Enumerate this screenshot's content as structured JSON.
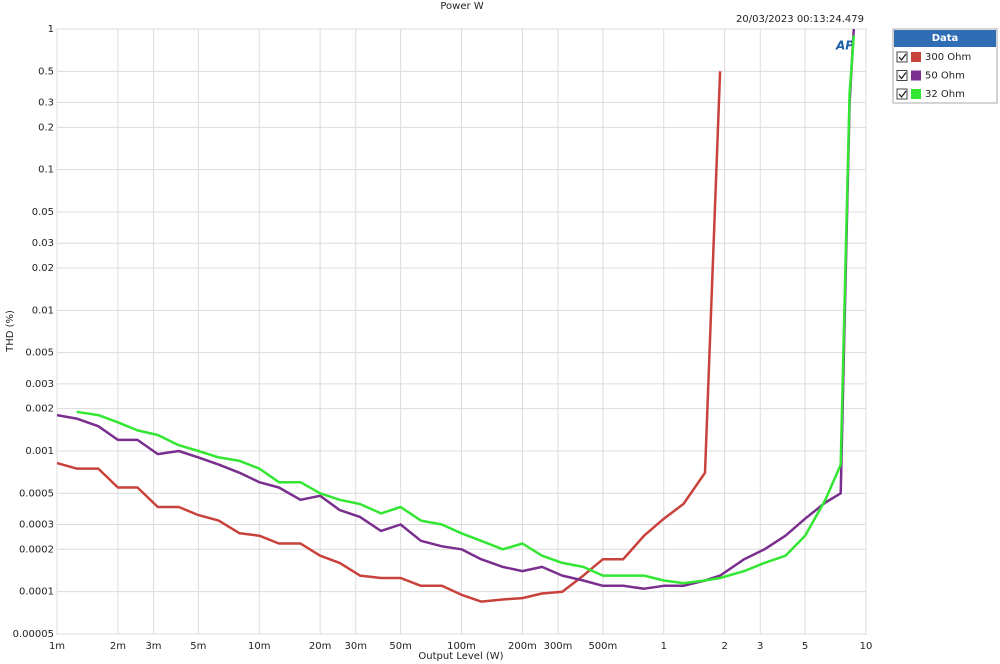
{
  "chart_data": {
    "type": "line",
    "title": "Power W",
    "timestamp": "20/03/2023 00:13:24.479",
    "logo": "AP",
    "xlabel": "Output Level (W)",
    "ylabel": "THD (%)",
    "legend_title": "Data",
    "legend": "outside-right",
    "xscale": "log",
    "yscale": "log",
    "grid": true,
    "xlim": [
      0.001,
      10
    ],
    "ylim": [
      5e-05,
      1
    ],
    "xticks": [
      {
        "value": 0.001,
        "label": "1m"
      },
      {
        "value": 0.002,
        "label": "2m"
      },
      {
        "value": 0.003,
        "label": "3m"
      },
      {
        "value": 0.005,
        "label": "5m"
      },
      {
        "value": 0.01,
        "label": "10m"
      },
      {
        "value": 0.02,
        "label": "20m"
      },
      {
        "value": 0.03,
        "label": "30m"
      },
      {
        "value": 0.05,
        "label": "50m"
      },
      {
        "value": 0.1,
        "label": "100m"
      },
      {
        "value": 0.2,
        "label": "200m"
      },
      {
        "value": 0.3,
        "label": "300m"
      },
      {
        "value": 0.5,
        "label": "500m"
      },
      1,
      2,
      3,
      5,
      10
    ],
    "yticks": [
      1,
      0.5,
      0.3,
      0.2,
      0.1,
      0.05,
      0.03,
      0.02,
      0.01,
      0.005,
      0.003,
      0.002,
      0.001,
      0.0005,
      0.0003,
      0.0002,
      0.0001,
      5e-05
    ],
    "x": [
      0.001,
      0.00125,
      0.0016,
      0.002,
      0.0025,
      0.00315,
      0.004,
      0.005,
      0.0063,
      0.008,
      0.01,
      0.0125,
      0.016,
      0.02,
      0.025,
      0.0315,
      0.04,
      0.05,
      0.063,
      0.08,
      0.1,
      0.125,
      0.16,
      0.2,
      0.25,
      0.315,
      0.4,
      0.5,
      0.63,
      0.8,
      1,
      1.25,
      1.6,
      1.9,
      2.5,
      3.15,
      4,
      5,
      6.3,
      7.5,
      8.3,
      8.7
    ],
    "series": [
      {
        "name": "300 Ohm",
        "color": "#c8413b",
        "values": [
          0.00082,
          0.00075,
          0.00075,
          0.00055,
          0.00055,
          0.0004,
          0.0004,
          0.00035,
          0.00032,
          0.00026,
          0.00025,
          0.00022,
          0.00022,
          0.00018,
          0.00016,
          0.00013,
          0.000125,
          0.000125,
          0.00011,
          0.00011,
          9.5e-05,
          8.5e-05,
          8.8e-05,
          9e-05,
          9.7e-05,
          0.0001,
          0.00013,
          0.00017,
          0.00017,
          0.00025,
          0.00033,
          0.00042,
          0.0007,
          0.5,
          null,
          null,
          null,
          null,
          null,
          null,
          null,
          null
        ]
      },
      {
        "name": "50 Ohm",
        "color": "#7a2e8e",
        "values": [
          0.0018,
          0.0017,
          0.0015,
          0.0012,
          0.0012,
          0.00095,
          0.001,
          0.0009,
          0.0008,
          0.0007,
          0.0006,
          0.00055,
          0.00045,
          0.00048,
          0.00038,
          0.00034,
          0.00027,
          0.0003,
          0.00023,
          0.00021,
          0.0002,
          0.00017,
          0.00015,
          0.00014,
          0.00015,
          0.00013,
          0.00012,
          0.00011,
          0.00011,
          0.000105,
          0.00011,
          0.00011,
          0.00012,
          0.00013,
          0.00017,
          0.0002,
          0.00025,
          0.00033,
          0.00043,
          0.0005,
          0.3,
          1
        ]
      },
      {
        "name": "32 Ohm",
        "color": "#33e633",
        "values": [
          null,
          0.0019,
          0.0018,
          0.0016,
          0.0014,
          0.0013,
          0.0011,
          0.001,
          0.0009,
          0.00085,
          0.00075,
          0.0006,
          0.0006,
          0.0005,
          0.00045,
          0.00042,
          0.00036,
          0.0004,
          0.00032,
          0.0003,
          0.00026,
          0.00023,
          0.0002,
          0.00022,
          0.00018,
          0.00016,
          0.00015,
          0.00013,
          0.00013,
          0.00013,
          0.00012,
          0.000115,
          0.00012,
          0.000125,
          0.00014,
          0.00016,
          0.00018,
          0.00025,
          0.00045,
          0.0008,
          0.35,
          0.9
        ]
      }
    ]
  }
}
